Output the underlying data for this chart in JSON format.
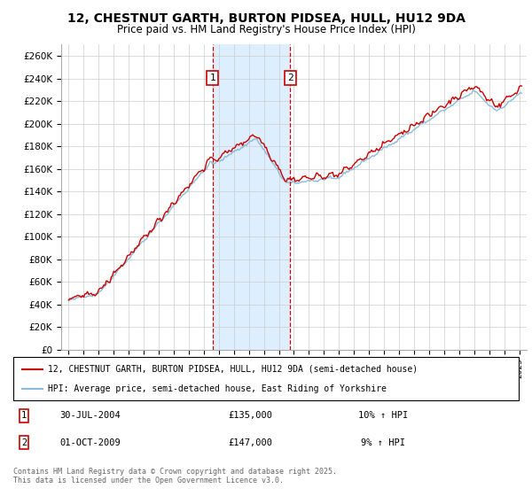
{
  "title": "12, CHESTNUT GARTH, BURTON PIDSEA, HULL, HU12 9DA",
  "subtitle": "Price paid vs. HM Land Registry's House Price Index (HPI)",
  "title_fontsize": 10,
  "subtitle_fontsize": 8.5,
  "red_label": "12, CHESTNUT GARTH, BURTON PIDSEA, HULL, HU12 9DA (semi-detached house)",
  "blue_label": "HPI: Average price, semi-detached house, East Riding of Yorkshire",
  "marker1_date": "30-JUL-2004",
  "marker1_price": "£135,000",
  "marker1_pct": "10% ↑ HPI",
  "marker2_date": "01-OCT-2009",
  "marker2_price": "£147,000",
  "marker2_pct": "9% ↑ HPI",
  "copyright_text": "Contains HM Land Registry data © Crown copyright and database right 2025.\nThis data is licensed under the Open Government Licence v3.0.",
  "yticks": [
    0,
    20000,
    40000,
    60000,
    80000,
    100000,
    120000,
    140000,
    160000,
    180000,
    200000,
    220000,
    240000,
    260000
  ],
  "ylim": [
    0,
    270000
  ],
  "background_color": "#ffffff",
  "grid_color": "#cccccc",
  "red_color": "#cc0000",
  "blue_line_color": "#88bbdd",
  "highlight_color": "#ddeeff",
  "marker_box_color": "#cc0000",
  "marker1_x_year": 2004.58,
  "marker2_x_year": 2009.75,
  "xlim_left": 1994.5,
  "xlim_right": 2025.5
}
